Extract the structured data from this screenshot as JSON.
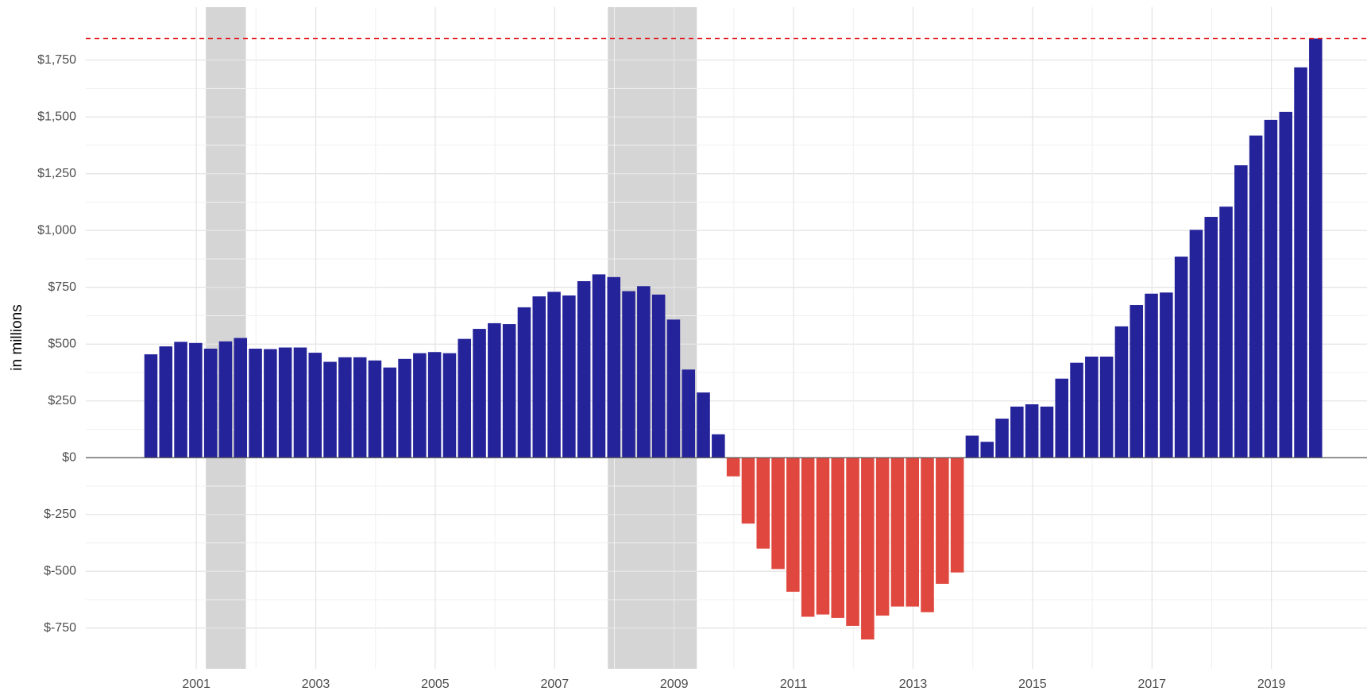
{
  "chart_data": {
    "type": "bar",
    "y_label": "in millions",
    "x": [
      2000.24,
      2000.49,
      2000.74,
      2000.99,
      2001.24,
      2001.49,
      2001.74,
      2001.99,
      2002.24,
      2002.49,
      2002.74,
      2002.99,
      2003.24,
      2003.49,
      2003.74,
      2003.99,
      2004.24,
      2004.49,
      2004.74,
      2004.99,
      2005.24,
      2005.49,
      2005.74,
      2005.99,
      2006.24,
      2006.49,
      2006.74,
      2006.99,
      2007.24,
      2007.49,
      2007.74,
      2007.99,
      2008.24,
      2008.49,
      2008.74,
      2008.99,
      2009.24,
      2009.49,
      2009.74,
      2009.99,
      2010.24,
      2010.49,
      2010.74,
      2010.99,
      2011.24,
      2011.49,
      2011.74,
      2011.99,
      2012.24,
      2012.49,
      2012.74,
      2012.99,
      2013.24,
      2013.49,
      2013.74,
      2013.99,
      2014.24,
      2014.49,
      2014.74,
      2014.99,
      2015.24,
      2015.49,
      2015.74,
      2015.99,
      2016.24,
      2016.49,
      2016.74,
      2016.99,
      2017.24,
      2017.49,
      2017.74,
      2017.99,
      2018.24,
      2018.49,
      2018.74,
      2018.99,
      2019.24,
      2019.49,
      2019.74
    ],
    "values": [
      455,
      490,
      510,
      505,
      480,
      512,
      527,
      480,
      478,
      485,
      485,
      462,
      422,
      442,
      442,
      428,
      397,
      435,
      460,
      465,
      460,
      523,
      567,
      592,
      588,
      662,
      710,
      730,
      714,
      777,
      807,
      795,
      733,
      755,
      718,
      608,
      388,
      287,
      103,
      -82,
      -290,
      -400,
      -490,
      -590,
      -700,
      -690,
      -705,
      -740,
      -800,
      -695,
      -655,
      -655,
      -680,
      -555,
      -505,
      97,
      70,
      172,
      225,
      235,
      225,
      348,
      418,
      445,
      445,
      578,
      672,
      722,
      727,
      885,
      1003,
      1060,
      1105,
      1287,
      1418,
      1487,
      1522,
      1718,
      1845
    ],
    "positive_color": "#25239a",
    "negative_color": "#e0483f",
    "xlim": [
      1999.15,
      2020.6
    ],
    "xticks": [
      2001,
      2003,
      2005,
      2007,
      2009,
      2011,
      2013,
      2015,
      2017,
      2019
    ],
    "ylim": [
      -929,
      1983
    ],
    "yticks": [
      {
        "value": -750,
        "label": "$-750"
      },
      {
        "value": -500,
        "label": "$-500"
      },
      {
        "value": -250,
        "label": "$-250"
      },
      {
        "value": 0,
        "label": "$0"
      },
      {
        "value": 250,
        "label": "$250"
      },
      {
        "value": 500,
        "label": "$500"
      },
      {
        "value": 750,
        "label": "$750"
      },
      {
        "value": 1000,
        "label": "$1,000"
      },
      {
        "value": 1250,
        "label": "$1,250"
      },
      {
        "value": 1500,
        "label": "$1,500"
      },
      {
        "value": 1750,
        "label": "$1,750"
      }
    ],
    "shaded_ranges": [
      [
        2001.16,
        2001.83
      ],
      [
        2007.89,
        2009.38
      ]
    ],
    "shade_color": "#d3d3d3",
    "reference_line": 1845,
    "reference_color": "#e41a1c",
    "grid": true
  }
}
